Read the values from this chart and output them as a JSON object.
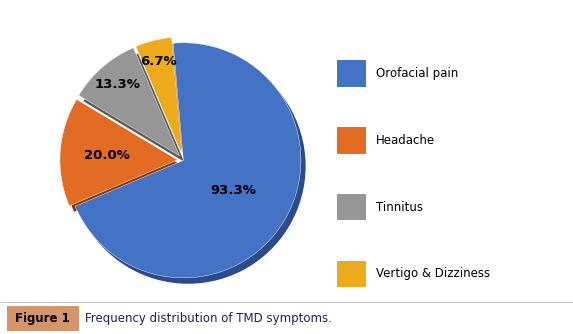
{
  "labels": [
    "Orofacial pain",
    "Headache",
    "Tinnitus",
    "Vertigo & Dizziness"
  ],
  "values": [
    93.3,
    20.0,
    13.3,
    6.7
  ],
  "colors": [
    "#4472C4",
    "#E36C24",
    "#969696",
    "#EDAA1B"
  ],
  "shadow_colors": [
    "#2B4C8A",
    "#8B3A0E",
    "#5A5A5A",
    "#A07010"
  ],
  "explode": [
    0.0,
    0.05,
    0.05,
    0.05
  ],
  "pct_labels": [
    "93.3%",
    "20.0%",
    "13.3%",
    "6.7%"
  ],
  "legend_labels": [
    "Orofacial pain",
    "Headache",
    "Tinnitus",
    "Vertigo & Dizziness"
  ],
  "legend_colors": [
    "#4472C4",
    "#E36C24",
    "#969696",
    "#EDAA1B"
  ],
  "figure_label": "Figure 1",
  "figure_caption": "Frequency distribution of TMD symptoms.",
  "bg_color": "#FFFFFF",
  "caption_box_color": "#D4956A",
  "startangle": 95
}
